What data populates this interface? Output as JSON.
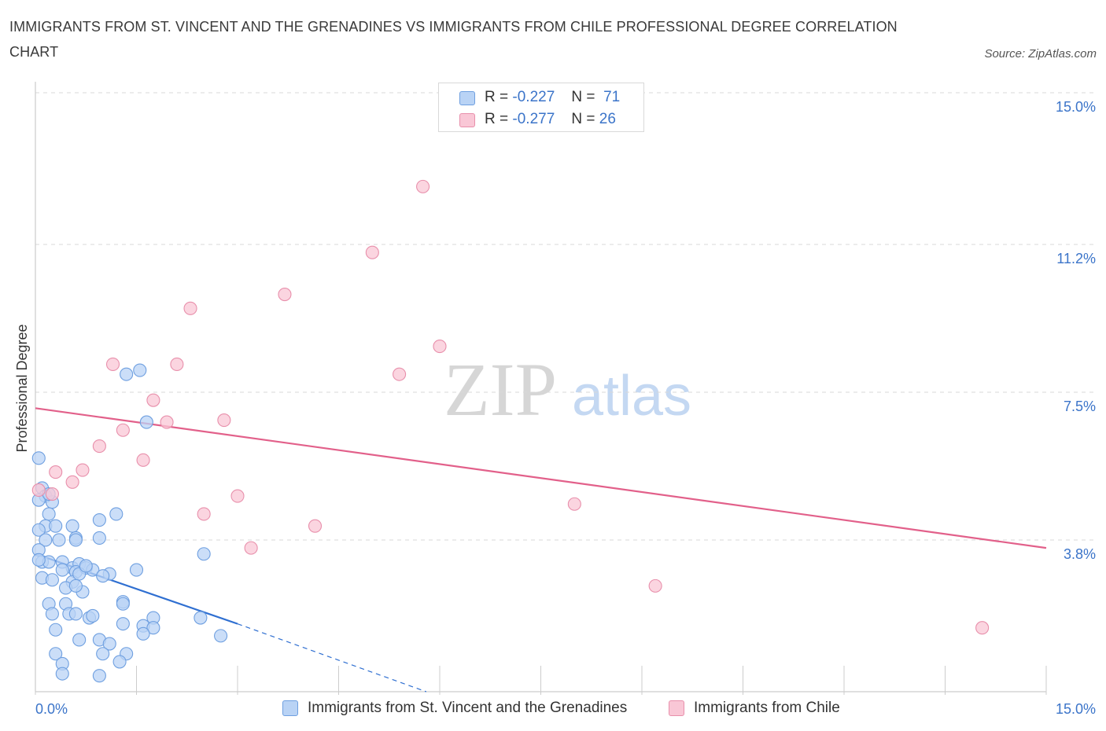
{
  "title": "IMMIGRANTS FROM ST. VINCENT AND THE GRENADINES VS IMMIGRANTS FROM CHILE PROFESSIONAL DEGREE CORRELATION CHART",
  "source": "Source: ZipAtlas.com",
  "watermark": {
    "zip": "ZIP",
    "atlas": "atlas"
  },
  "legend": {
    "r_label": "R =",
    "n_label": "N =",
    "series1": {
      "r": "-0.227",
      "n": "71"
    },
    "series2": {
      "r": "-0.277",
      "n": "26"
    }
  },
  "colors": {
    "blue_fill": "#b9d3f5",
    "blue_stroke": "#6e9fe0",
    "blue_line": "#2f6fd1",
    "pink_fill": "#f9c7d6",
    "pink_stroke": "#e88fab",
    "pink_line": "#e2608a",
    "tick_text": "#3b74c9",
    "grid": "#d8d8d8"
  },
  "chart_data": {
    "type": "scatter",
    "title": "IMMIGRANTS FROM ST. VINCENT AND THE GRENADINES VS IMMIGRANTS FROM CHILE PROFESSIONAL DEGREE CORRELATION CHART",
    "xlabel": "",
    "ylabel": "Professional Degree",
    "xlim": [
      0,
      15
    ],
    "ylim": [
      0,
      15
    ],
    "x_tick_labels": [
      "0.0%",
      "15.0%"
    ],
    "y_ticks": [
      3.8,
      7.5,
      11.2,
      15.0
    ],
    "y_tick_labels": [
      "3.8%",
      "7.5%",
      "11.2%",
      "15.0%"
    ],
    "grid": "horizontal dashed",
    "legend_position": "top-center and bottom",
    "series": [
      {
        "name": "Immigrants from St. Vincent and the Grenadines",
        "color": "blue",
        "trend": {
          "x": [
            0.0,
            3.0
          ],
          "y": [
            3.45,
            1.7
          ],
          "extended_to": [
            5.8,
            0.0
          ]
        },
        "points": [
          [
            0.05,
            5.85
          ],
          [
            0.1,
            5.1
          ],
          [
            0.15,
            4.9
          ],
          [
            0.05,
            4.8
          ],
          [
            0.25,
            4.75
          ],
          [
            0.2,
            4.45
          ],
          [
            0.15,
            4.15
          ],
          [
            0.3,
            4.15
          ],
          [
            0.05,
            4.05
          ],
          [
            0.55,
            4.15
          ],
          [
            0.6,
            3.85
          ],
          [
            0.95,
            4.3
          ],
          [
            1.2,
            4.45
          ],
          [
            0.35,
            3.8
          ],
          [
            0.6,
            3.8
          ],
          [
            0.15,
            3.8
          ],
          [
            0.05,
            3.55
          ],
          [
            0.95,
            3.85
          ],
          [
            0.1,
            3.25
          ],
          [
            0.2,
            3.25
          ],
          [
            0.4,
            3.25
          ],
          [
            0.55,
            3.1
          ],
          [
            0.65,
            3.2
          ],
          [
            0.4,
            3.05
          ],
          [
            0.6,
            3.0
          ],
          [
            0.75,
            3.1
          ],
          [
            0.85,
            3.05
          ],
          [
            1.5,
            3.05
          ],
          [
            1.1,
            2.95
          ],
          [
            0.1,
            2.85
          ],
          [
            0.25,
            2.8
          ],
          [
            0.55,
            2.75
          ],
          [
            0.65,
            2.95
          ],
          [
            0.45,
            2.6
          ],
          [
            0.7,
            2.5
          ],
          [
            0.6,
            2.65
          ],
          [
            0.2,
            2.2
          ],
          [
            0.45,
            2.2
          ],
          [
            1.3,
            2.25
          ],
          [
            1.3,
            2.2
          ],
          [
            0.5,
            1.95
          ],
          [
            0.6,
            1.95
          ],
          [
            0.25,
            1.95
          ],
          [
            0.8,
            1.85
          ],
          [
            2.45,
            1.85
          ],
          [
            1.75,
            1.85
          ],
          [
            0.85,
            1.9
          ],
          [
            1.3,
            1.7
          ],
          [
            1.6,
            1.65
          ],
          [
            1.75,
            1.6
          ],
          [
            0.3,
            1.55
          ],
          [
            2.75,
            1.4
          ],
          [
            1.6,
            1.45
          ],
          [
            0.65,
            1.3
          ],
          [
            0.95,
            1.3
          ],
          [
            1.1,
            1.2
          ],
          [
            0.3,
            0.95
          ],
          [
            1.35,
            0.95
          ],
          [
            1.0,
            0.95
          ],
          [
            0.4,
            0.7
          ],
          [
            1.25,
            0.75
          ],
          [
            0.4,
            0.45
          ],
          [
            0.95,
            0.4
          ],
          [
            2.5,
            3.45
          ],
          [
            1.55,
            8.05
          ],
          [
            1.35,
            7.95
          ],
          [
            0.2,
            4.95
          ],
          [
            1.65,
            6.75
          ],
          [
            1.0,
            2.9
          ],
          [
            0.75,
            3.15
          ],
          [
            0.05,
            3.3
          ]
        ]
      },
      {
        "name": "Immigrants from Chile",
        "color": "pink",
        "trend": {
          "x": [
            0.0,
            15.0
          ],
          "y": [
            7.1,
            3.6
          ]
        },
        "points": [
          [
            5.75,
            12.65
          ],
          [
            5.0,
            11.0
          ],
          [
            3.7,
            9.95
          ],
          [
            2.3,
            9.6
          ],
          [
            6.0,
            8.65
          ],
          [
            1.15,
            8.2
          ],
          [
            2.1,
            8.2
          ],
          [
            5.4,
            7.95
          ],
          [
            1.75,
            7.3
          ],
          [
            2.8,
            6.8
          ],
          [
            1.95,
            6.75
          ],
          [
            1.3,
            6.55
          ],
          [
            0.95,
            6.15
          ],
          [
            1.6,
            5.8
          ],
          [
            0.7,
            5.55
          ],
          [
            0.3,
            5.5
          ],
          [
            0.55,
            5.25
          ],
          [
            0.05,
            5.05
          ],
          [
            0.25,
            4.95
          ],
          [
            3.0,
            4.9
          ],
          [
            2.5,
            4.45
          ],
          [
            8.0,
            4.7
          ],
          [
            4.15,
            4.15
          ],
          [
            3.2,
            3.6
          ],
          [
            9.2,
            2.65
          ],
          [
            14.05,
            1.6
          ]
        ]
      }
    ]
  },
  "bottom_legend": {
    "series1_label": "Immigrants from St. Vincent and the Grenadines",
    "series2_label": "Immigrants from Chile"
  }
}
